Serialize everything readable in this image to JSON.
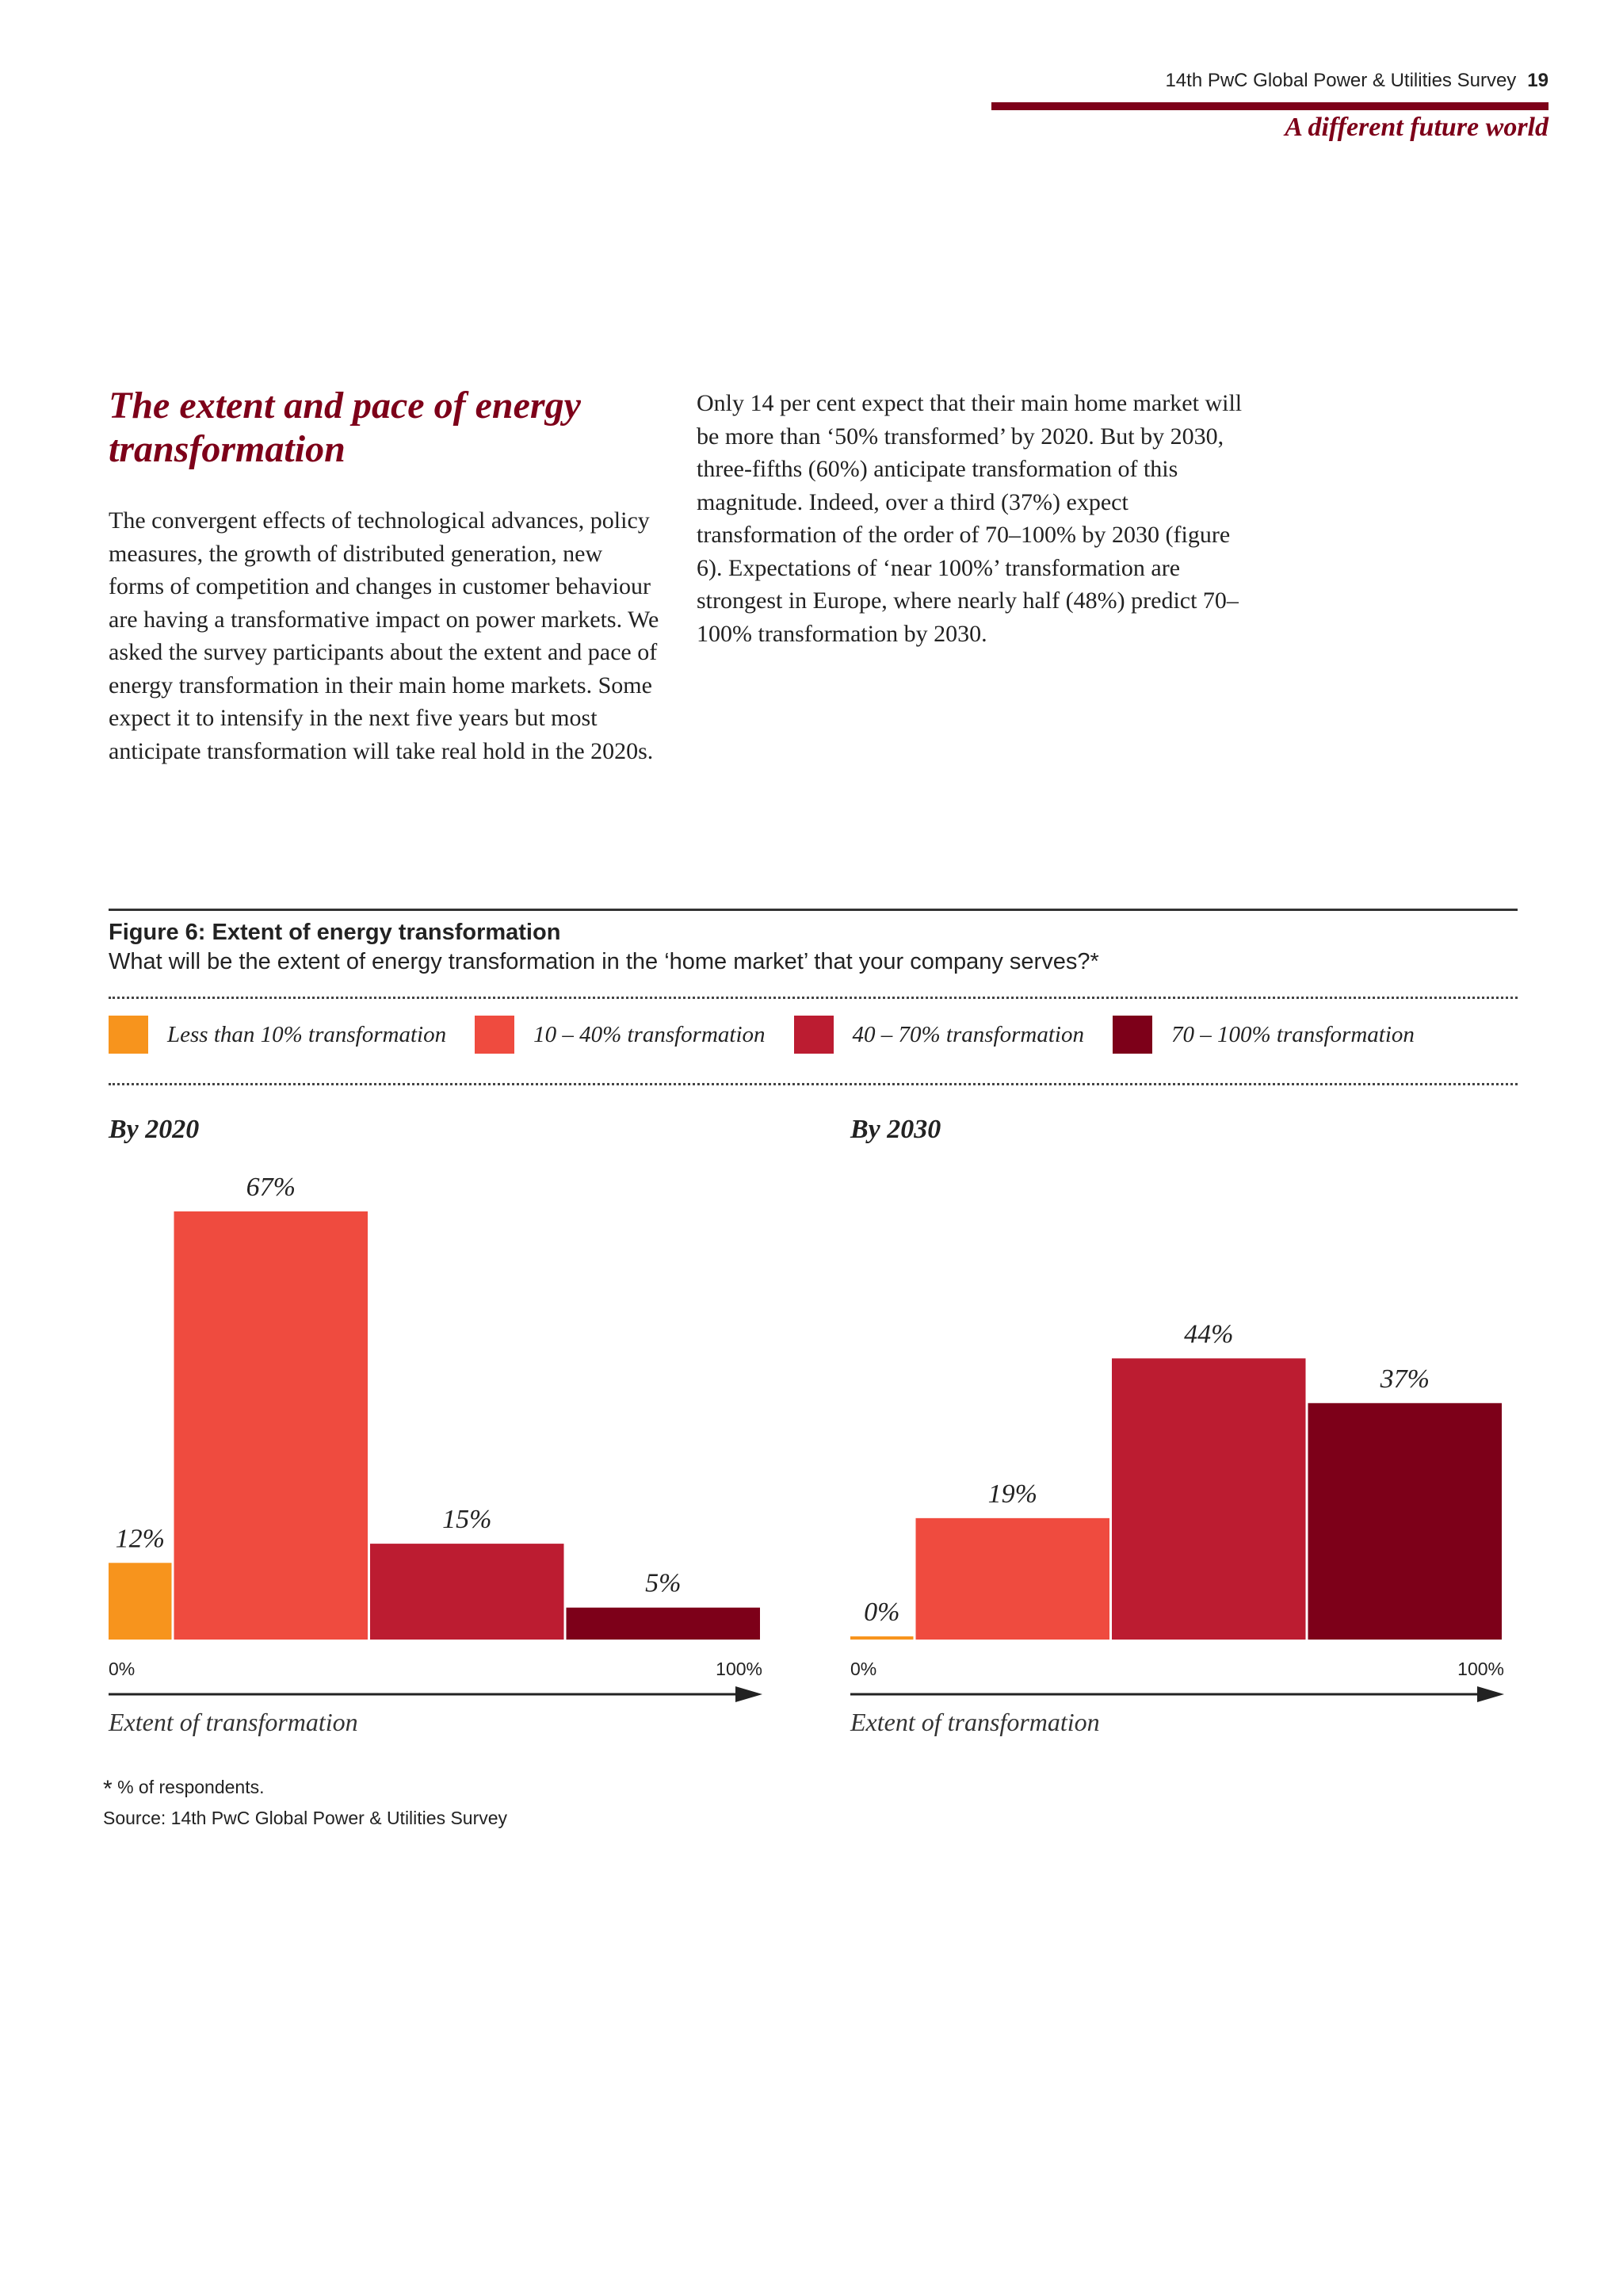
{
  "header": {
    "running_title": "14th PwC Global Power & Utilities Survey",
    "page_number": "19",
    "section": "A different future world",
    "accent_color": "#7d0019"
  },
  "article": {
    "title": "The extent and pace of energy transformation",
    "paragraph_left": "The convergent effects of technological advances, policy measures, the growth of distributed generation, new forms of competition and changes in customer behaviour are having a transformative impact on power markets. We asked the survey participants about the extent and pace of energy transformation in their main home markets. Some expect it to intensify in the next five years but most anticipate transformation will take real hold in the 2020s.",
    "paragraph_right": "Only 14 per cent expect that their main home market will be more than ‘50% transformed’ by 2020. But by 2030, three-fifths (60%) anticipate transformation of this magnitude. Indeed, over a third (37%) expect transformation of the order of 70–100% by 2030 (figure 6). Expectations of ‘near 100%’ transformation are strongest in Europe, where nearly half (48%) predict 70–100% transformation by 2030."
  },
  "figure": {
    "title": "Figure 6: Extent of energy transformation",
    "subtitle": "What will be the extent of energy transformation in the ‘home market’ that your company serves?*",
    "footnote_mark": "*",
    "footnote": "% of respondents.",
    "source": "Source: 14th PwC Global Power & Utilities Survey"
  },
  "chart_data": [
    {
      "type": "bar",
      "title": "By 2020",
      "categories": [
        "Less than 10% transformation",
        "10 – 40% transformation",
        "40 – 70%  transformation",
        "70 – 100% transformation"
      ],
      "bin_ranges": [
        [
          0,
          10
        ],
        [
          10,
          40
        ],
        [
          40,
          70
        ],
        [
          70,
          100
        ]
      ],
      "values": [
        12,
        67,
        15,
        5
      ],
      "data_labels": [
        "12%",
        "67%",
        "15%",
        "5%"
      ],
      "colors": [
        "#f7941d",
        "#ef4b3f",
        "#bc1c31",
        "#7d0019"
      ],
      "x_ticks": [
        "0%",
        "100%"
      ],
      "xlabel": "Extent of transformation",
      "legend": "top",
      "grid": false
    },
    {
      "type": "bar",
      "title": "By 2030",
      "categories": [
        "Less than 10% transformation",
        "10 – 40% transformation",
        "40 – 70%  transformation",
        "70 – 100% transformation"
      ],
      "bin_ranges": [
        [
          0,
          10
        ],
        [
          10,
          40
        ],
        [
          40,
          70
        ],
        [
          70,
          100
        ]
      ],
      "values": [
        0,
        19,
        44,
        37
      ],
      "data_labels": [
        "0%",
        "19%",
        "44%",
        "37%"
      ],
      "colors": [
        "#f7941d",
        "#ef4b3f",
        "#bc1c31",
        "#7d0019"
      ],
      "x_ticks": [
        "0%",
        "100%"
      ],
      "xlabel": "Extent of transformation",
      "legend": "top",
      "grid": false
    }
  ]
}
